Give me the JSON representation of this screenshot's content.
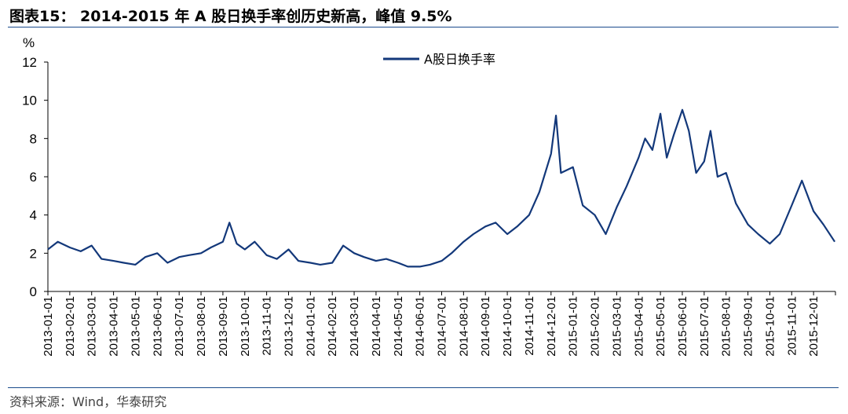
{
  "header": {
    "title": "图表15： 2014-2015 年 A 股日换手率创历史新高，峰值 9.5%"
  },
  "footer": {
    "source": "资料来源：Wind，华泰研究"
  },
  "colors": {
    "series": "#13387a",
    "rule": "#1a4b8c",
    "axis": "#000000"
  },
  "chart_data": {
    "type": "line",
    "ylabel": "%",
    "ylim": [
      0,
      12
    ],
    "yticks": [
      0,
      2,
      4,
      6,
      8,
      10,
      12
    ],
    "legend_position": "top-center",
    "grid": false,
    "x_tick_labels": [
      "2013-01-01",
      "2013-02-01",
      "2013-03-01",
      "2013-04-01",
      "2013-05-01",
      "2013-06-01",
      "2013-07-01",
      "2013-08-01",
      "2013-09-01",
      "2013-10-01",
      "2013-11-01",
      "2013-12-01",
      "2014-01-01",
      "2014-02-01",
      "2014-03-01",
      "2014-04-01",
      "2014-05-01",
      "2014-06-01",
      "2014-07-01",
      "2014-08-01",
      "2014-09-01",
      "2014-10-01",
      "2014-11-01",
      "2014-12-01",
      "2015-01-01",
      "2015-02-01",
      "2015-03-01",
      "2015-04-01",
      "2015-05-01",
      "2015-06-01",
      "2015-07-01",
      "2015-08-01",
      "2015-09-01",
      "2015-10-01",
      "2015-11-01",
      "2015-12-01"
    ],
    "series": [
      {
        "name": "A股日换手率",
        "x": [
          "2013-01-01",
          "2013-01-15",
          "2013-02-01",
          "2013-02-15",
          "2013-03-01",
          "2013-03-15",
          "2013-04-01",
          "2013-04-15",
          "2013-05-01",
          "2013-05-15",
          "2013-06-01",
          "2013-06-15",
          "2013-07-01",
          "2013-07-15",
          "2013-08-01",
          "2013-08-15",
          "2013-09-01",
          "2013-09-10",
          "2013-09-20",
          "2013-10-01",
          "2013-10-15",
          "2013-11-01",
          "2013-11-15",
          "2013-12-01",
          "2013-12-15",
          "2014-01-01",
          "2014-01-15",
          "2014-02-01",
          "2014-02-15",
          "2014-03-01",
          "2014-03-15",
          "2014-04-01",
          "2014-04-15",
          "2014-05-01",
          "2014-05-15",
          "2014-06-01",
          "2014-06-15",
          "2014-07-01",
          "2014-07-15",
          "2014-08-01",
          "2014-08-15",
          "2014-09-01",
          "2014-09-15",
          "2014-10-01",
          "2014-10-15",
          "2014-11-01",
          "2014-11-15",
          "2014-12-01",
          "2014-12-08",
          "2014-12-15",
          "2015-01-01",
          "2015-01-15",
          "2015-02-01",
          "2015-02-15",
          "2015-03-01",
          "2015-03-15",
          "2015-04-01",
          "2015-04-10",
          "2015-04-20",
          "2015-05-01",
          "2015-05-10",
          "2015-05-20",
          "2015-06-01",
          "2015-06-10",
          "2015-06-20",
          "2015-07-01",
          "2015-07-10",
          "2015-07-20",
          "2015-08-01",
          "2015-08-15",
          "2015-09-01",
          "2015-09-15",
          "2015-10-01",
          "2015-10-15",
          "2015-11-01",
          "2015-11-15",
          "2015-12-01",
          "2015-12-15",
          "2015-12-31"
        ],
        "values": [
          2.2,
          2.6,
          2.3,
          2.1,
          2.4,
          1.7,
          1.6,
          1.5,
          1.4,
          1.8,
          2.0,
          1.5,
          1.8,
          1.9,
          2.0,
          2.3,
          2.6,
          3.6,
          2.5,
          2.2,
          2.6,
          1.9,
          1.7,
          2.2,
          1.6,
          1.5,
          1.4,
          1.5,
          2.4,
          2.0,
          1.8,
          1.6,
          1.7,
          1.5,
          1.3,
          1.3,
          1.4,
          1.6,
          2.0,
          2.6,
          3.0,
          3.4,
          3.6,
          3.0,
          3.4,
          4.0,
          5.2,
          7.2,
          9.2,
          6.2,
          6.5,
          4.5,
          4.0,
          3.0,
          4.4,
          5.5,
          7.0,
          8.0,
          7.4,
          9.3,
          7.0,
          8.2,
          9.5,
          8.4,
          6.2,
          6.8,
          8.4,
          6.0,
          6.2,
          4.6,
          3.5,
          3.0,
          2.5,
          3.0,
          4.5,
          5.8,
          4.2,
          3.5,
          2.6
        ]
      }
    ]
  }
}
